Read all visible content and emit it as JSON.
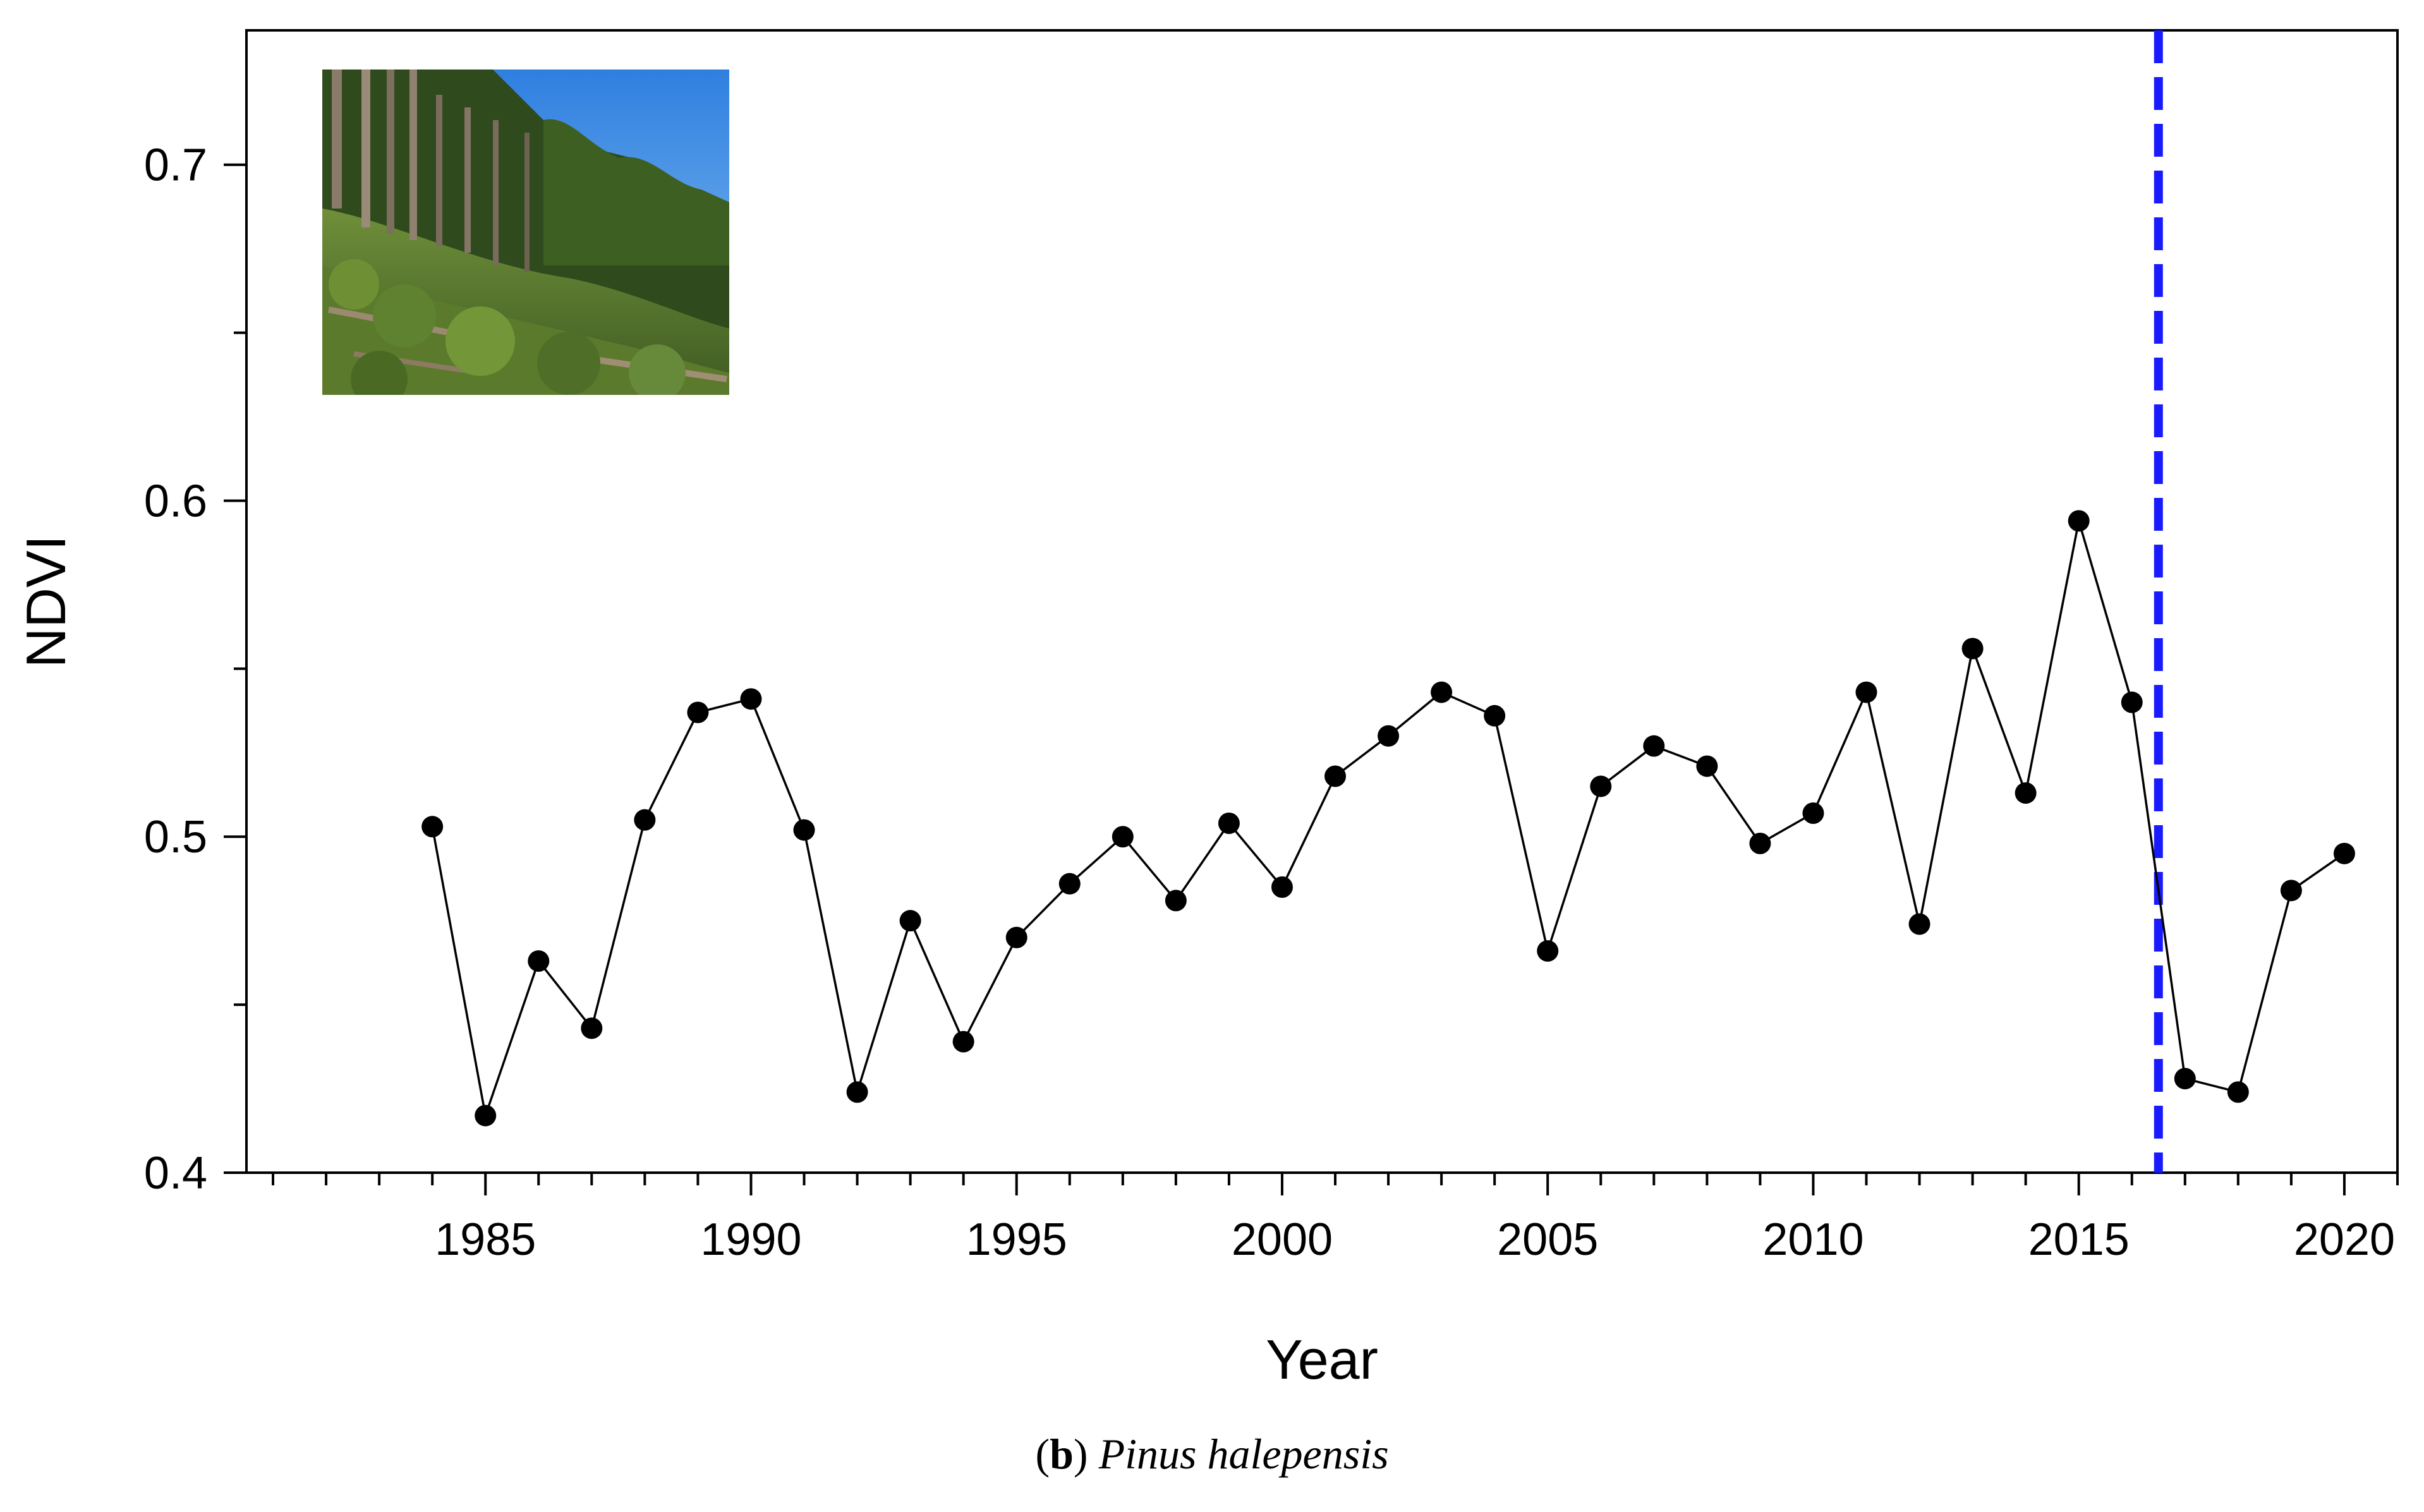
{
  "chart_data": {
    "type": "line",
    "title": "",
    "xlabel": "Year",
    "ylabel": "NDVI",
    "xlim": [
      1980.5,
      2021
    ],
    "ylim": [
      0.4,
      0.74
    ],
    "x_ticks": [
      1985,
      1990,
      1995,
      2000,
      2005,
      2010,
      2015,
      2020
    ],
    "x_tick_labels": [
      "1985",
      "1990",
      "1995",
      "2000",
      "2005",
      "2010",
      "2015",
      "2020"
    ],
    "y_ticks": [
      0.4,
      0.5,
      0.6,
      0.7
    ],
    "y_tick_labels": [
      "0.4",
      "0.5",
      "0.6",
      "0.7"
    ],
    "x_minor_step": 1,
    "y_minor_step": 0.05,
    "grid": false,
    "series": [
      {
        "marker": "filled-circle",
        "color": "#000000",
        "x": [
          1984,
          1985,
          1986,
          1987,
          1988,
          1989,
          1990,
          1991,
          1992,
          1993,
          1994,
          1995,
          1996,
          1997,
          1998,
          1999,
          2000,
          2001,
          2002,
          2003,
          2004,
          2005,
          2006,
          2007,
          2008,
          2009,
          2010,
          2011,
          2012,
          2013,
          2014,
          2015,
          2016,
          2017,
          2018,
          2019,
          2020
        ],
        "y": [
          0.503,
          0.417,
          0.463,
          0.443,
          0.505,
          0.537,
          0.541,
          0.502,
          0.424,
          0.475,
          0.439,
          0.47,
          0.486,
          0.5,
          0.481,
          0.504,
          0.485,
          0.518,
          0.53,
          0.543,
          0.536,
          0.466,
          0.515,
          0.527,
          0.521,
          0.498,
          0.507,
          0.543,
          0.474,
          0.556,
          0.513,
          0.594,
          0.54,
          0.428,
          0.424,
          0.484,
          0.495
        ]
      }
    ],
    "reference_line": {
      "orientation": "vertical",
      "x": 2016.5,
      "style": "dashed",
      "color": "#1a1aff"
    },
    "inset_photo": {
      "description_icon": "pine-forest-photo",
      "placement": "top-left"
    }
  },
  "caption": {
    "open_paren": "(",
    "panel_letter": "b",
    "close_paren": ") ",
    "species": "Pinus halepensis"
  }
}
